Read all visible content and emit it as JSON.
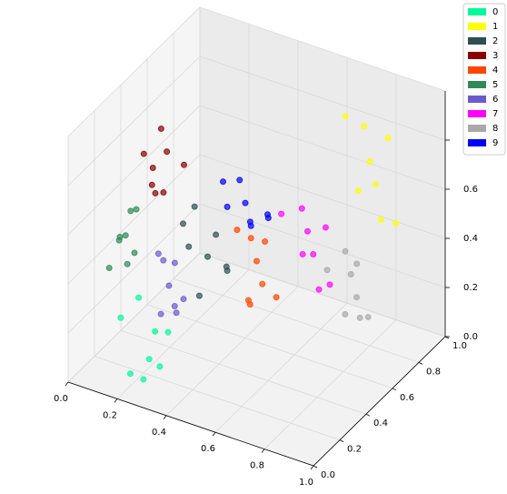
{
  "chart_data": {
    "type": "scatter3d",
    "xlim": [
      0,
      1
    ],
    "ylim": [
      0,
      1
    ],
    "zlim": [
      0,
      1
    ],
    "xticks": [
      {
        "value": 0,
        "label": "0.0"
      },
      {
        "value": 0.2,
        "label": "0.2"
      },
      {
        "value": 0.4,
        "label": "0.4"
      },
      {
        "value": 0.6,
        "label": "0.6"
      },
      {
        "value": 0.8,
        "label": "0.8"
      },
      {
        "value": 1,
        "label": "1.0"
      }
    ],
    "yticks": [
      {
        "value": 0,
        "label": "0.0"
      },
      {
        "value": 0.2,
        "label": "0.2"
      },
      {
        "value": 0.4,
        "label": "0.4"
      },
      {
        "value": 0.6,
        "label": "0.6"
      },
      {
        "value": 0.8,
        "label": "0.8"
      },
      {
        "value": 1,
        "label": "1.0"
      }
    ],
    "zticks": [
      {
        "value": 0,
        "label": "0.0"
      },
      {
        "value": 0.2,
        "label": "0.2"
      },
      {
        "value": 0.4,
        "label": "0.4"
      },
      {
        "value": 0.6,
        "label": "0.6"
      },
      {
        "value": 0.8,
        "label": "0.8"
      }
    ],
    "grid": true,
    "legend": "upper-right",
    "series": [
      {
        "name": "0",
        "color": "#00fa9a",
        "x": [
          0.2,
          0.25,
          0.3,
          0.15,
          0.22,
          0.28,
          0.18,
          0.32
        ],
        "y": [
          0.1,
          0.15,
          0.2,
          0.12,
          0.25,
          0.05,
          0.2,
          0.1
        ],
        "z": [
          0.05,
          0.1,
          0.2,
          0.25,
          0.15,
          0.08,
          0.3,
          0.12
        ]
      },
      {
        "name": "1",
        "color": "#ffff00",
        "x": [
          0.8,
          0.85,
          0.75,
          0.9,
          0.82,
          0.7,
          0.88,
          0.78
        ],
        "y": [
          0.8,
          0.75,
          0.85,
          0.7,
          0.9,
          0.8,
          0.85,
          0.75
        ],
        "z": [
          0.75,
          0.7,
          0.85,
          0.6,
          0.8,
          0.9,
          0.5,
          0.65
        ]
      },
      {
        "name": "2",
        "color": "#2f4f4f",
        "x": [
          0.3,
          0.25,
          0.35,
          0.2,
          0.32,
          0.28,
          0.38,
          0.22
        ],
        "y": [
          0.5,
          0.45,
          0.55,
          0.5,
          0.4,
          0.6,
          0.5,
          0.55
        ],
        "z": [
          0.35,
          0.4,
          0.3,
          0.45,
          0.25,
          0.38,
          0.32,
          0.5
        ]
      },
      {
        "name": "3",
        "color": "#8b0000",
        "x": [
          0.05,
          0.08,
          0.12,
          0.03,
          0.1,
          0.06,
          0.15,
          0.04
        ],
        "y": [
          0.55,
          0.6,
          0.5,
          0.65,
          0.45,
          0.55,
          0.6,
          0.5
        ],
        "z": [
          0.6,
          0.65,
          0.55,
          0.7,
          0.6,
          0.5,
          0.62,
          0.68
        ]
      },
      {
        "name": "4",
        "color": "#ff4500",
        "x": [
          0.5,
          0.55,
          0.45,
          0.52,
          0.48,
          0.58,
          0.42,
          0.5
        ],
        "y": [
          0.5,
          0.45,
          0.55,
          0.4,
          0.6,
          0.5,
          0.5,
          0.45
        ],
        "z": [
          0.4,
          0.35,
          0.45,
          0.3,
          0.42,
          0.28,
          0.5,
          0.25
        ]
      },
      {
        "name": "5",
        "color": "#2e8b57",
        "x": [
          0.05,
          0.1,
          0.02,
          0.08,
          0.04,
          0.12,
          0.06,
          0.09
        ],
        "y": [
          0.3,
          0.25,
          0.35,
          0.3,
          0.4,
          0.28,
          0.2,
          0.35
        ],
        "z": [
          0.45,
          0.5,
          0.4,
          0.35,
          0.5,
          0.42,
          0.38,
          0.55
        ]
      },
      {
        "name": "6",
        "color": "#6a5acd",
        "x": [
          0.25,
          0.3,
          0.2,
          0.28,
          0.22,
          0.32,
          0.26,
          0.18
        ],
        "y": [
          0.3,
          0.25,
          0.35,
          0.3,
          0.4,
          0.28,
          0.22,
          0.35
        ],
        "z": [
          0.32,
          0.28,
          0.38,
          0.22,
          0.35,
          0.3,
          0.25,
          0.4
        ]
      },
      {
        "name": "7",
        "color": "#ff00ff",
        "x": [
          0.6,
          0.65,
          0.55,
          0.7,
          0.62,
          0.58,
          0.68,
          0.52
        ],
        "y": [
          0.7,
          0.65,
          0.75,
          0.6,
          0.8,
          0.7,
          0.72,
          0.65
        ],
        "z": [
          0.45,
          0.4,
          0.5,
          0.3,
          0.42,
          0.35,
          0.25,
          0.52
        ]
      },
      {
        "name": "8",
        "color": "#a9a9a9",
        "x": [
          0.75,
          0.8,
          0.7,
          0.78,
          0.72,
          0.82,
          0.68,
          0.76
        ],
        "y": [
          0.75,
          0.7,
          0.8,
          0.65,
          0.85,
          0.75,
          0.7,
          0.8
        ],
        "z": [
          0.3,
          0.25,
          0.35,
          0.2,
          0.28,
          0.15,
          0.32,
          0.1
        ]
      },
      {
        "name": "9",
        "color": "#0000ff",
        "x": [
          0.4,
          0.45,
          0.35,
          0.42,
          0.38,
          0.48,
          0.32,
          0.44
        ],
        "y": [
          0.6,
          0.55,
          0.65,
          0.6,
          0.5,
          0.62,
          0.58,
          0.7
        ],
        "z": [
          0.55,
          0.5,
          0.6,
          0.48,
          0.58,
          0.52,
          0.62,
          0.45
        ]
      }
    ]
  }
}
